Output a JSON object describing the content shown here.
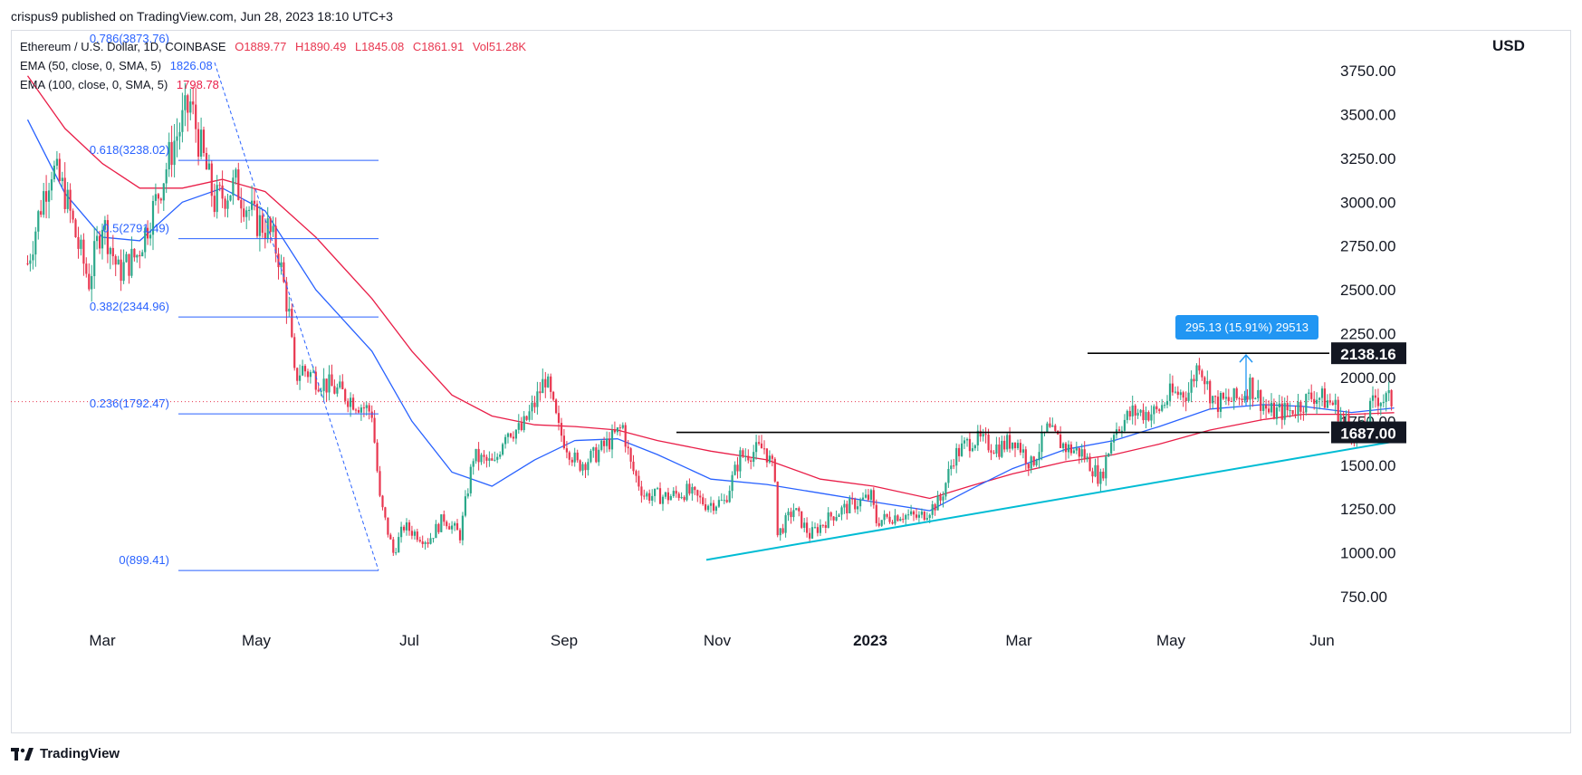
{
  "header": {
    "published_by": "crispus9 published on TradingView.com, Jun 28, 2023 18:10 UTC+3"
  },
  "legend": {
    "symbol": "Ethereum / U.S. Dollar, 1D, COINBASE",
    "open": "O1889.77",
    "high": "H1890.49",
    "low": "L1845.08",
    "close": "C1861.91",
    "volume": "Vol51.28K",
    "ema50_label": "EMA (50, close, 0, SMA, 5)",
    "ema50_value": "1826.08",
    "ema100_label": "EMA (100, close, 0, SMA, 5)",
    "ema100_value": "1798.78"
  },
  "axis": {
    "currency": "USD",
    "y_ticks": [
      "3750.00",
      "3500.00",
      "3250.00",
      "3000.00",
      "2750.00",
      "2500.00",
      "2250.00",
      "2000.00",
      "1750.00",
      "1500.00",
      "1250.00",
      "1000.00",
      "750.00"
    ],
    "x_ticks": [
      "Mar",
      "May",
      "Jul",
      "Sep",
      "Nov",
      "2023",
      "Mar",
      "May",
      "Jun"
    ]
  },
  "colors": {
    "up": "#26a69a",
    "down": "#ef5350",
    "candle_up": "#2ba88a",
    "candle_down": "#e8364f",
    "ema50": "#2962ff",
    "ema100": "#e91e48",
    "fib": "#2962ff",
    "trendline": "#00bcd4",
    "level": "#000000",
    "measure": "#2196f3"
  },
  "annotations": {
    "resistance_label": "2138.16",
    "support_label": "1687.00",
    "measure_label": "295.13 (15.91%) 29513",
    "fib_levels": [
      "0.786(3873.76)",
      "0.618(3238.02)",
      "0.5(2791.49)",
      "0.382(2344.96)",
      "0.236(1792.47)",
      "0(899.41)"
    ]
  },
  "brand": {
    "name": "TradingView"
  },
  "chart_data": {
    "type": "candlestick",
    "title": "Ethereum / U.S. Dollar, 1D, COINBASE",
    "ylabel": "USD",
    "ylim": [
      650,
      3920
    ],
    "grid": false,
    "price_path": [
      [
        "2022-02-01",
        2650
      ],
      [
        "2022-02-07",
        3050
      ],
      [
        "2022-02-10",
        3200
      ],
      [
        "2022-02-15",
        3050
      ],
      [
        "2022-02-20",
        2750
      ],
      [
        "2022-02-24",
        2550
      ],
      [
        "2022-03-01",
        2900
      ],
      [
        "2022-03-07",
        2600
      ],
      [
        "2022-03-14",
        2700
      ],
      [
        "2022-03-21",
        3000
      ],
      [
        "2022-03-28",
        3350
      ],
      [
        "2022-04-03",
        3560
      ],
      [
        "2022-04-07",
        3300
      ],
      [
        "2022-04-12",
        3000
      ],
      [
        "2022-04-20",
        3100
      ],
      [
        "2022-04-27",
        2900
      ],
      [
        "2022-05-02",
        2850
      ],
      [
        "2022-05-06",
        2700
      ],
      [
        "2022-05-10",
        2350
      ],
      [
        "2022-05-12",
        2000
      ],
      [
        "2022-05-15",
        2050
      ],
      [
        "2022-05-25",
        1950
      ],
      [
        "2022-05-31",
        1900
      ],
      [
        "2022-06-10",
        1800
      ],
      [
        "2022-06-13",
        1300
      ],
      [
        "2022-06-18",
        1000
      ],
      [
        "2022-06-22",
        1150
      ],
      [
        "2022-07-01",
        1070
      ],
      [
        "2022-07-07",
        1200
      ],
      [
        "2022-07-13",
        1100
      ],
      [
        "2022-07-18",
        1550
      ],
      [
        "2022-07-26",
        1500
      ],
      [
        "2022-07-30",
        1700
      ],
      [
        "2022-08-05",
        1700
      ],
      [
        "2022-08-10",
        1850
      ],
      [
        "2022-08-14",
        2000
      ],
      [
        "2022-08-19",
        1700
      ],
      [
        "2022-08-26",
        1500
      ],
      [
        "2022-09-01",
        1550
      ],
      [
        "2022-09-08",
        1650
      ],
      [
        "2022-09-12",
        1720
      ],
      [
        "2022-09-15",
        1500
      ],
      [
        "2022-09-20",
        1330
      ],
      [
        "2022-09-29",
        1320
      ],
      [
        "2022-10-06",
        1350
      ],
      [
        "2022-10-13",
        1280
      ],
      [
        "2022-10-20",
        1290
      ],
      [
        "2022-10-26",
        1550
      ],
      [
        "2022-11-04",
        1600
      ],
      [
        "2022-11-08",
        1450
      ],
      [
        "2022-11-09",
        1100
      ],
      [
        "2022-11-15",
        1250
      ],
      [
        "2022-11-21",
        1100
      ],
      [
        "2022-11-29",
        1210
      ],
      [
        "2022-12-05",
        1260
      ],
      [
        "2022-12-14",
        1320
      ],
      [
        "2022-12-16",
        1180
      ],
      [
        "2022-12-25",
        1220
      ],
      [
        "2023-01-01",
        1200
      ],
      [
        "2023-01-09",
        1300
      ],
      [
        "2023-01-14",
        1550
      ],
      [
        "2023-01-21",
        1650
      ],
      [
        "2023-01-31",
        1600
      ],
      [
        "2023-02-06",
        1650
      ],
      [
        "2023-02-12",
        1500
      ],
      [
        "2023-02-18",
        1700
      ],
      [
        "2023-02-25",
        1600
      ],
      [
        "2023-03-03",
        1570
      ],
      [
        "2023-03-10",
        1420
      ],
      [
        "2023-03-15",
        1700
      ],
      [
        "2023-03-22",
        1800
      ],
      [
        "2023-03-31",
        1800
      ],
      [
        "2023-04-05",
        1900
      ],
      [
        "2023-04-12",
        1920
      ],
      [
        "2023-04-16",
        2100
      ],
      [
        "2023-04-19",
        1950
      ],
      [
        "2023-04-22",
        1850
      ],
      [
        "2023-05-01",
        1880
      ],
      [
        "2023-05-05",
        1960
      ],
      [
        "2023-05-12",
        1800
      ],
      [
        "2023-05-20",
        1810
      ],
      [
        "2023-05-29",
        1900
      ],
      [
        "2023-06-05",
        1850
      ],
      [
        "2023-06-10",
        1750
      ],
      [
        "2023-06-15",
        1650
      ],
      [
        "2023-06-21",
        1890
      ],
      [
        "2023-06-28",
        1862
      ]
    ],
    "ema50_path": [
      [
        "2022-02-01",
        3470
      ],
      [
        "2022-02-15",
        3050
      ],
      [
        "2022-03-01",
        2800
      ],
      [
        "2022-03-15",
        2780
      ],
      [
        "2022-03-31",
        3000
      ],
      [
        "2022-04-15",
        3080
      ],
      [
        "2022-05-01",
        2950
      ],
      [
        "2022-05-20",
        2500
      ],
      [
        "2022-06-10",
        2150
      ],
      [
        "2022-06-25",
        1750
      ],
      [
        "2022-07-10",
        1460
      ],
      [
        "2022-07-25",
        1380
      ],
      [
        "2022-08-10",
        1530
      ],
      [
        "2022-08-25",
        1640
      ],
      [
        "2022-09-10",
        1650
      ],
      [
        "2022-09-25",
        1560
      ],
      [
        "2022-10-15",
        1420
      ],
      [
        "2022-11-05",
        1390
      ],
      [
        "2022-11-25",
        1340
      ],
      [
        "2022-12-15",
        1290
      ],
      [
        "2023-01-05",
        1240
      ],
      [
        "2023-01-20",
        1360
      ],
      [
        "2023-02-05",
        1480
      ],
      [
        "2023-02-25",
        1590
      ],
      [
        "2023-03-15",
        1640
      ],
      [
        "2023-04-01",
        1720
      ],
      [
        "2023-04-20",
        1820
      ],
      [
        "2023-05-10",
        1845
      ],
      [
        "2023-05-25",
        1835
      ],
      [
        "2023-06-12",
        1800
      ],
      [
        "2023-06-28",
        1826
      ]
    ],
    "ema100_path": [
      [
        "2022-02-01",
        3720
      ],
      [
        "2022-02-15",
        3420
      ],
      [
        "2022-03-01",
        3220
      ],
      [
        "2022-03-15",
        3080
      ],
      [
        "2022-03-31",
        3080
      ],
      [
        "2022-04-15",
        3130
      ],
      [
        "2022-05-01",
        3060
      ],
      [
        "2022-05-20",
        2800
      ],
      [
        "2022-06-10",
        2450
      ],
      [
        "2022-06-25",
        2150
      ],
      [
        "2022-07-10",
        1900
      ],
      [
        "2022-07-25",
        1780
      ],
      [
        "2022-08-10",
        1730
      ],
      [
        "2022-08-25",
        1720
      ],
      [
        "2022-09-10",
        1700
      ],
      [
        "2022-09-25",
        1640
      ],
      [
        "2022-10-15",
        1580
      ],
      [
        "2022-11-05",
        1530
      ],
      [
        "2022-11-25",
        1420
      ],
      [
        "2022-12-15",
        1380
      ],
      [
        "2023-01-05",
        1310
      ],
      [
        "2023-01-20",
        1380
      ],
      [
        "2023-02-05",
        1450
      ],
      [
        "2023-02-25",
        1520
      ],
      [
        "2023-03-15",
        1560
      ],
      [
        "2023-04-01",
        1620
      ],
      [
        "2023-04-20",
        1700
      ],
      [
        "2023-05-10",
        1760
      ],
      [
        "2023-05-25",
        1790
      ],
      [
        "2023-06-12",
        1790
      ],
      [
        "2023-06-28",
        1799
      ]
    ],
    "fib_levels": [
      {
        "ratio": "0.786",
        "price": 3873.76
      },
      {
        "ratio": "0.618",
        "price": 3238.02
      },
      {
        "ratio": "0.5",
        "price": 2791.49
      },
      {
        "ratio": "0.382",
        "price": 2344.96
      },
      {
        "ratio": "0.236",
        "price": 1792.47
      },
      {
        "ratio": "0",
        "price": 899.41
      }
    ],
    "horizontal_levels": [
      2138.16,
      1687.0
    ],
    "ascending_trendline": [
      [
        "2022-10-15",
        960
      ],
      [
        "2023-06-30",
        1640
      ]
    ],
    "current_price": 1861.91
  }
}
